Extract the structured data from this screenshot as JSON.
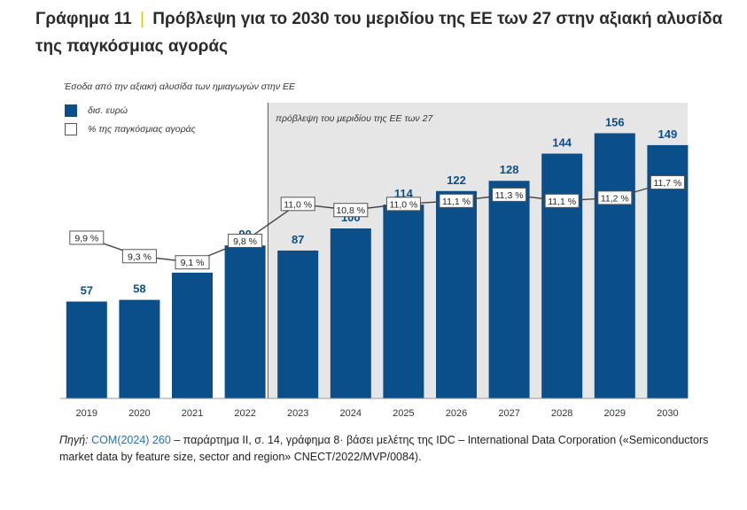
{
  "header": {
    "title_prefix": "Γράφημα 11",
    "title_sep": "|",
    "title_text": "Πρόβλεψη για το 2030 του μεριδίου της ΕΕ των 27 στην αξιακή αλυσίδα της παγκόσμιας αγοράς"
  },
  "chart_data": {
    "type": "bar",
    "subtitle": "Έσοδα από την αξιακή αλυσίδα των ημιαγωγών στην ΕΕ",
    "forecast_label": "πρόβλεψη του μεριδίου της ΕΕ των 27",
    "forecast_from": "2023",
    "categories": [
      "2019",
      "2020",
      "2021",
      "2022",
      "2023",
      "2024",
      "2025",
      "2026",
      "2027",
      "2028",
      "2029",
      "2030"
    ],
    "series": [
      {
        "name": "δισ. ευρώ",
        "values": [
          57,
          58,
          74,
          90,
          87,
          100,
          114,
          122,
          128,
          144,
          156,
          149
        ],
        "color": "#0b4f8a"
      },
      {
        "name": "% της παγκόσμιας αγοράς",
        "values": [
          9.9,
          9.3,
          9.1,
          9.8,
          11.0,
          10.8,
          11.0,
          11.1,
          11.3,
          11.1,
          11.2,
          11.7
        ]
      }
    ],
    "bar_labels": [
      "57",
      "58",
      "74",
      "90",
      "87",
      "100",
      "114",
      "122",
      "128",
      "144",
      "156",
      "149"
    ],
    "pct_labels": [
      "9,9 %",
      "9,3 %",
      "9,1 %",
      "9,8 %",
      "11,0 %",
      "10,8 %",
      "11,0 %",
      "11,1 %",
      "11,3 %",
      "11,1 %",
      "11,2 %",
      "11,7 %"
    ],
    "colors": {
      "bar": "#0b4f8a",
      "shade": "#e6e6e6",
      "line": "#444444"
    }
  },
  "source": {
    "label": "Πηγή:",
    "link": "COM(2024) 260",
    "text": " – παράρτημα II, σ. 14, γράφημα 8· βάσει μελέτης της IDC – International Data Corporation («Semiconductors market data by feature size, sector and region» CNECT/2022/MVP/0084)."
  }
}
